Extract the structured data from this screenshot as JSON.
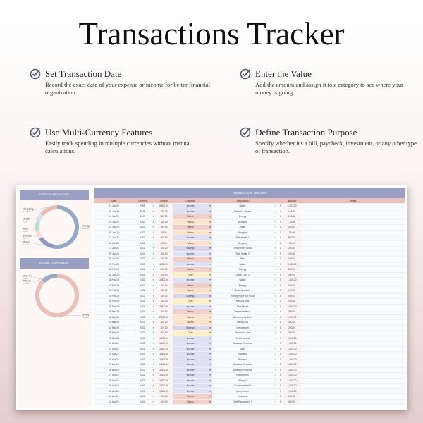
{
  "title": "Transactions Tracker",
  "features": [
    {
      "title": "Set Transaction Date",
      "text": "Record the exact date of your expense or income for better financial organization.",
      "icon": "check-circle-icon"
    },
    {
      "title": "Enter the Value",
      "text": "Add the amount and assign it to a category to see where your money is going.",
      "icon": "check-circle-icon"
    },
    {
      "title": "Use Multi-Currency Features",
      "text": "Easily track spending in multiple currencies without manual calculations.",
      "icon": "check-circle-icon"
    },
    {
      "title": "Define Transaction Purpose",
      "text": "Specify whether it's a bill, paycheck, investment, or any other type of transaction.",
      "icon": "check-circle-icon"
    }
  ],
  "expense": {
    "title": "EXPENSE BREAKDOWN"
  },
  "income": {
    "title": "INCOME COMPONENTS"
  },
  "chart_data": [
    {
      "type": "pie",
      "title": "EXPENSE BREAKDOWN",
      "slices": [
        {
          "label": "Energy",
          "value": 52.5,
          "color": "#98a9c8"
        },
        {
          "label": "Water",
          "value": 13.1,
          "color": "#8e97c4"
        },
        {
          "label": "Emerge",
          "value": 6.7,
          "color": "#f7dcd8"
        },
        {
          "label": "Rent",
          "value": 6.7,
          "color": "#b5e0c9"
        },
        {
          "label": "Credit",
          "value": 6.7,
          "color": "#d6e1f4"
        },
        {
          "label": "Shopping",
          "value": 14.3,
          "color": "#ebbcb3"
        }
      ]
    },
    {
      "type": "pie",
      "title": "INCOME COMPONENTS",
      "slices": [
        {
          "label": "Salary",
          "value": 87.8,
          "color": "#ebbfb7"
        },
        {
          "label": "Side Hu",
          "value": 0.7,
          "color": "#8e97c4"
        },
        {
          "label": "Partner",
          "value": 11.5,
          "color": "#98a9c8"
        }
      ]
    }
  ],
  "table": {
    "title": "TRANSACTION TRACKER",
    "headers": [
      "Date",
      "Currency",
      "Amount",
      "Category",
      "Transaction",
      "Amount",
      "Notes"
    ],
    "currency_symbol": "$",
    "category_colors": {
      "Income": "#dde3f4",
      "Needs": "#f2cfc9",
      "Wants": "#fce3c9",
      "Savings": "#ddd5ea",
      "Debt": "#fdf1c4"
    },
    "rows": [
      [
        "01 Jan 25",
        "GBP",
        "5,000.00",
        "Income",
        "Salary",
        "6,297.50"
      ],
      [
        "09 Jan 25",
        "EUR",
        "150.00",
        "Income",
        "Partner's Salary",
        "154.94"
      ],
      [
        "14 Jan 25",
        "EUR",
        "500.00",
        "Needs",
        "Energy",
        "516.46"
      ],
      [
        "14 Jan 25",
        "CAD",
        "100.00",
        "Wants",
        "Shopping",
        "70.48"
      ],
      [
        "04 Jan 25",
        "USD",
        "150.00",
        "Needs",
        "Water",
        "150.00"
      ],
      [
        "15 Jan 25",
        "USD",
        "50.00",
        "Wants",
        "Shopping",
        "50.00"
      ],
      [
        "02 Jan 25",
        "USD",
        "500.00",
        "Income",
        "Side Hustle 2",
        "500.00"
      ],
      [
        "18 Jan 25",
        "USD",
        "50.00",
        "Wants",
        "Shopping",
        "50.00"
      ],
      [
        "21 Jan 25",
        "USD",
        "100.00",
        "Savings",
        "Emergency Fund",
        "100.00"
      ],
      [
        "25 Jan 25",
        "USD",
        "150.00",
        "Income",
        "Side Hustle 2",
        "150.00"
      ],
      [
        "30 Jan 25",
        "USD",
        "100.00",
        "Needs",
        "Rent",
        "100.00"
      ],
      [
        "05 Feb 25",
        "GBP",
        "4,000.00",
        "Income",
        "Salary",
        "5,038.00"
      ],
      [
        "08 Feb 25",
        "USD",
        "500.00",
        "Needs",
        "Energy",
        "500.00"
      ],
      [
        "15 Jan 25",
        "USD",
        "100.00",
        "Debt",
        "Credit Card 1",
        "100.00"
      ],
      [
        "01 Feb 25",
        "USD",
        "1,500.00",
        "Income",
        "Salary",
        "1,500.00"
      ],
      [
        "02 Feb 25",
        "USD",
        "150.00",
        "Needs",
        "Energy",
        "150.00"
      ],
      [
        "03 Feb 25",
        "USD",
        "150.00",
        "Wants",
        "Entertainment",
        "150.00"
      ],
      [
        "04 Feb 25",
        "USD",
        "150.00",
        "Savings",
        "Emergency Food Fund",
        "150.00"
      ],
      [
        "05 Feb 25",
        "USD",
        "150.00",
        "Debt",
        "Medical Bills",
        "150.00"
      ],
      [
        "06 Feb 25",
        "USD",
        "2,000.00",
        "Income",
        "Side Hustle",
        "2,000.00"
      ],
      [
        "01 Mar 25",
        "USD",
        "200.00",
        "Needs",
        "Transportation 1",
        "200.00"
      ],
      [
        "02 Mar 25",
        "USD",
        "2,200.00",
        "Wants",
        "Streaming Services",
        "2,200.00"
      ],
      [
        "03 Mar 25",
        "USD",
        "200.00",
        "Wants",
        "Dining Out",
        "200.00"
      ],
      [
        "04 Mar 25",
        "USD",
        "200.00",
        "Savings",
        "Investments",
        "200.00"
      ],
      [
        "05 Mar 25",
        "USD",
        "200.00",
        "Debt",
        "Personal Loan",
        "200.00"
      ],
      [
        "06 Mar 25",
        "USD",
        "1,000.00",
        "Income",
        "Rental Income",
        "1,000.00"
      ],
      [
        "01 Apr 25",
        "USD",
        "1,000.00",
        "Income",
        "Business Revenue",
        "1,000.00"
      ],
      [
        "02 Apr 25",
        "USD",
        "1,000.00",
        "Income",
        "Sales",
        "1,000.00"
      ],
      [
        "03 Apr 25",
        "USD",
        "1,000.00",
        "Income",
        "Royalties",
        "1,000.00"
      ],
      [
        "04 Apr 25",
        "USD",
        "1,000.00",
        "Income",
        "Pension",
        "1,000.00"
      ],
      [
        "05 Apr 25",
        "USD",
        "1,000.00",
        "Income",
        "Business Revenue",
        "1,000.00"
      ],
      [
        "06 Apr 25",
        "USD",
        "1,000.00",
        "Income",
        "Business Revenue",
        "1,000.00"
      ],
      [
        "07 Apr 25",
        "USD",
        "1,000.00",
        "Income",
        "Investments",
        "1,000.00"
      ],
      [
        "08 Apr 25",
        "USD",
        "1,000.00",
        "Income",
        "Salary 2",
        "1,000.00"
      ],
      [
        "09 Apr 25",
        "USD",
        "1,000.00",
        "Income",
        "Government Aid",
        "1,000.00"
      ],
      [
        "10 Apr 25",
        "USD",
        "1,000.00",
        "Income",
        "Commission",
        "1,000.00"
      ],
      [
        "11 Apr 25",
        "USD",
        "400.00",
        "Needs",
        "Education",
        "400.00"
      ],
      [
        "12 Apr 25",
        "USD",
        "400.00",
        "Needs",
        "Debt Repayment 2",
        "400.00"
      ]
    ]
  }
}
